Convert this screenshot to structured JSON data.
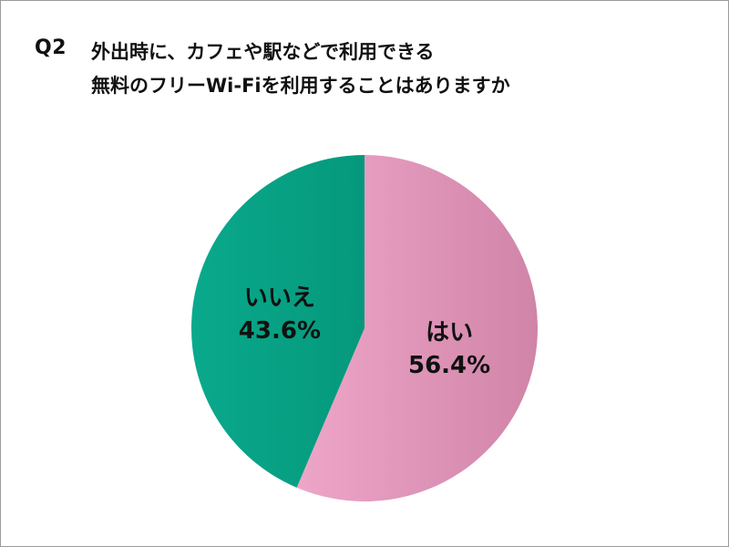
{
  "question": {
    "number": "Q2",
    "line1": "外出時に、カフェや駅などで利用できる",
    "line2": "無料のフリーWi-Fiを利用することはありますか"
  },
  "chart_data": {
    "type": "pie",
    "title": "外出時に、カフェや駅などで利用できる無料のフリーWi-Fiを利用することはありますか",
    "start_angle_deg": 0,
    "direction": "clockwise",
    "slices": [
      {
        "label": "はい",
        "value": 56.4,
        "value_label": "56.4%",
        "color_light": "#eea6c8",
        "color_dark": "#d084a8"
      },
      {
        "label": "いいえ",
        "value": 43.6,
        "value_label": "43.6%",
        "color_light": "#0aa98c",
        "color_dark": "#05987c"
      }
    ]
  }
}
